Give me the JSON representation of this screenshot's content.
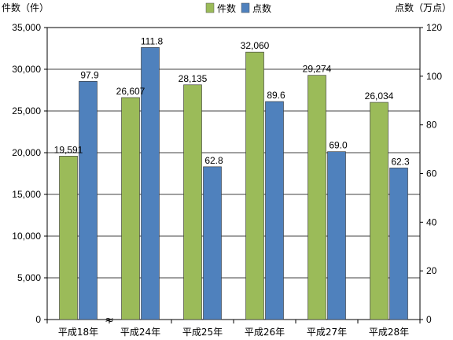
{
  "chart_data": {
    "type": "bar",
    "categories": [
      "平成18年",
      "平成24年",
      "平成25年",
      "平成26年",
      "平成27年",
      "平成28年"
    ],
    "series": [
      {
        "name": "件数",
        "axis": "left",
        "color": "#9bbb59",
        "values": [
          19591,
          26607,
          28135,
          32060,
          29274,
          26034
        ],
        "labels": [
          "19,591",
          "26,607",
          "28,135",
          "32,060",
          "29,274",
          "26,034"
        ]
      },
      {
        "name": "点数",
        "axis": "right",
        "color": "#4f81bd",
        "values": [
          97.9,
          111.8,
          62.8,
          89.6,
          69.0,
          62.3
        ],
        "labels": [
          "97.9",
          "111.8",
          "62.8",
          "89.6",
          "69.0",
          "62.3"
        ]
      }
    ],
    "ylabel_left": "件数（件）",
    "ylabel_right": "点数（万点）",
    "ylim_left": [
      0,
      35000
    ],
    "ylim_right": [
      0,
      120
    ],
    "yticks_left": [
      "0",
      "5,000",
      "10,000",
      "15,000",
      "20,000",
      "25,000",
      "30,000",
      "35,000"
    ],
    "yticks_right": [
      "0",
      "20",
      "40",
      "60",
      "80",
      "100",
      "120"
    ],
    "axis_break_symbol": "≈",
    "grid": true,
    "legend": "top"
  }
}
